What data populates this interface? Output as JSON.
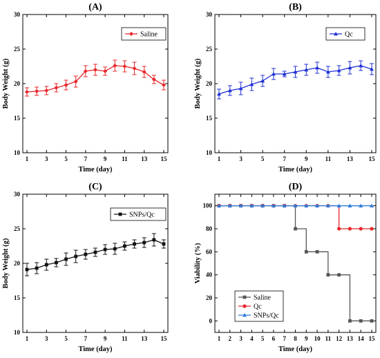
{
  "chart_data": [
    {
      "type": "line",
      "title": "(A)",
      "xlabel": "Time (day)",
      "ylabel": "Body Weight (g)",
      "xlim": [
        1,
        15
      ],
      "ylim": [
        10,
        30
      ],
      "xticks": [
        1,
        3,
        5,
        7,
        9,
        11,
        13,
        15
      ],
      "yticks": [
        10,
        15,
        20,
        25,
        30
      ],
      "legend_position": "top-right",
      "grid": false,
      "x": [
        1,
        2,
        3,
        4,
        5,
        6,
        7,
        8,
        9,
        10,
        11,
        12,
        13,
        14,
        15
      ],
      "series": [
        {
          "name": "Saline",
          "color": "#e8262a",
          "marker": "diamond",
          "values": [
            18.8,
            18.9,
            19.0,
            19.4,
            19.8,
            20.3,
            21.8,
            22.0,
            21.8,
            22.6,
            22.5,
            22.2,
            21.7,
            20.6,
            19.8
          ],
          "errors": [
            0.6,
            0.6,
            0.6,
            0.6,
            0.7,
            0.8,
            0.8,
            0.8,
            0.6,
            0.8,
            0.8,
            0.9,
            0.8,
            0.6,
            0.7
          ]
        }
      ]
    },
    {
      "type": "line",
      "title": "(B)",
      "xlabel": "Time (day)",
      "ylabel": "Body Weight (g)",
      "xlim": [
        1,
        15
      ],
      "ylim": [
        10,
        30
      ],
      "xticks": [
        1,
        3,
        5,
        7,
        9,
        11,
        13,
        15
      ],
      "yticks": [
        10,
        15,
        20,
        25,
        30
      ],
      "legend_position": "top-right",
      "grid": false,
      "x": [
        1,
        2,
        3,
        4,
        5,
        6,
        7,
        8,
        9,
        10,
        11,
        12,
        13,
        14,
        15
      ],
      "series": [
        {
          "name": "Qc",
          "color": "#1f2fd6",
          "marker": "triangle",
          "values": [
            18.5,
            19.0,
            19.3,
            19.9,
            20.4,
            21.4,
            21.4,
            21.7,
            22.0,
            22.3,
            21.7,
            21.9,
            22.3,
            22.6,
            22.1
          ],
          "errors": [
            0.7,
            0.7,
            0.9,
            0.9,
            0.8,
            0.8,
            0.4,
            0.8,
            0.8,
            0.8,
            0.8,
            0.7,
            0.9,
            0.7,
            0.8
          ]
        }
      ]
    },
    {
      "type": "line",
      "title": "(C)",
      "xlabel": "Time (day)",
      "ylabel": "Body Weight (g)",
      "xlim": [
        1,
        15
      ],
      "ylim": [
        10,
        30
      ],
      "xticks": [
        1,
        3,
        5,
        7,
        9,
        11,
        13,
        15
      ],
      "yticks": [
        10,
        15,
        20,
        25,
        30
      ],
      "legend_position": "top-right",
      "grid": false,
      "x": [
        1,
        2,
        3,
        4,
        5,
        6,
        7,
        8,
        9,
        10,
        11,
        12,
        13,
        14,
        15
      ],
      "series": [
        {
          "name": "SNPs/Qc",
          "color": "#111111",
          "marker": "square",
          "values": [
            19.1,
            19.3,
            19.8,
            20.1,
            20.6,
            21.0,
            21.3,
            21.6,
            22.0,
            22.1,
            22.5,
            22.8,
            23.0,
            23.4,
            22.8
          ],
          "errors": [
            0.9,
            0.8,
            0.8,
            0.6,
            0.9,
            0.9,
            0.7,
            0.6,
            0.7,
            0.8,
            0.6,
            0.6,
            0.7,
            0.9,
            0.6
          ]
        }
      ]
    },
    {
      "type": "line",
      "title": "(D)",
      "xlabel": "Time (day)",
      "ylabel": "Viability (%)",
      "xlim": [
        1,
        15
      ],
      "ylim": [
        -10,
        110
      ],
      "xticks": [
        1,
        2,
        3,
        4,
        5,
        6,
        7,
        8,
        9,
        10,
        11,
        12,
        13,
        14,
        15
      ],
      "yticks": [
        0,
        20,
        40,
        60,
        80,
        100
      ],
      "legend_position": "bottom-left",
      "grid": false,
      "step": true,
      "x": [
        1,
        2,
        3,
        4,
        5,
        6,
        7,
        8,
        9,
        10,
        11,
        12,
        13,
        14,
        15
      ],
      "series": [
        {
          "name": "Saline",
          "color": "#555555",
          "marker": "square",
          "values": [
            100,
            100,
            100,
            100,
            100,
            100,
            100,
            80,
            60,
            60,
            40,
            40,
            0,
            0,
            0
          ]
        },
        {
          "name": "Qc",
          "color": "#e8262a",
          "marker": "circle",
          "values": [
            100,
            100,
            100,
            100,
            100,
            100,
            100,
            100,
            100,
            100,
            100,
            80,
            80,
            80,
            80
          ]
        },
        {
          "name": "SNPs/Qc",
          "color": "#2d7bd8",
          "marker": "triangle",
          "values": [
            100,
            100,
            100,
            100,
            100,
            100,
            100,
            100,
            100,
            100,
            100,
            100,
            100,
            100,
            100
          ]
        }
      ]
    }
  ]
}
